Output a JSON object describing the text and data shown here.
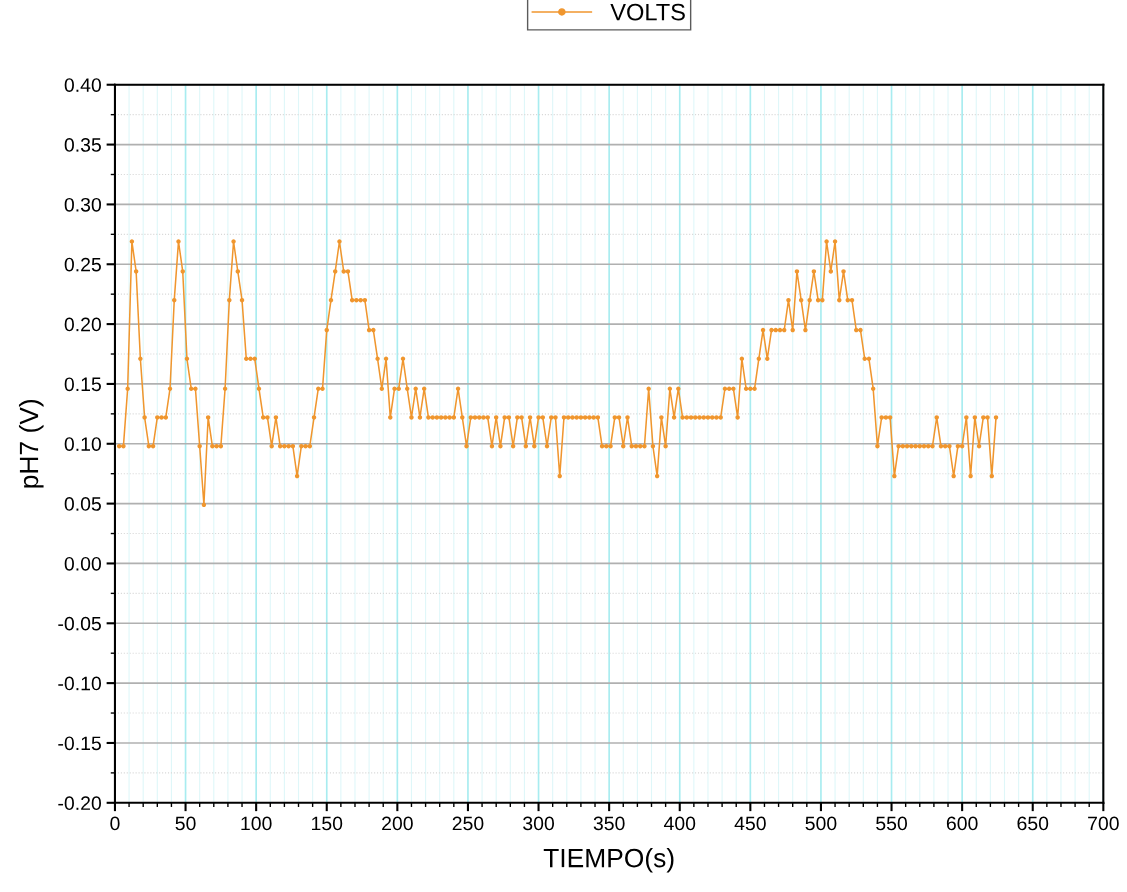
{
  "chart_data": {
    "type": "line",
    "xlabel": "TIEMPO(s)",
    "ylabel": "pH7 (V)",
    "xlim": [
      0,
      700
    ],
    "xticks": [
      0,
      50,
      100,
      150,
      200,
      250,
      300,
      350,
      400,
      450,
      500,
      550,
      600,
      650,
      700
    ],
    "ylim": [
      -0.2,
      0.4
    ],
    "yticks": [
      {
        "value": -0.2,
        "label": "-0.20"
      },
      {
        "value": -0.15,
        "label": "-0.15"
      },
      {
        "value": -0.1,
        "label": "-0.10"
      },
      {
        "value": -0.05,
        "label": "-0.05"
      },
      {
        "value": 0,
        "label": "0.00"
      },
      {
        "value": 0.05,
        "label": "0.05"
      },
      {
        "value": 0.1,
        "label": "0.10"
      },
      {
        "value": 0.15,
        "label": "0.15"
      },
      {
        "value": 0.2,
        "label": "0.20"
      },
      {
        "value": 0.25,
        "label": "0.25"
      },
      {
        "value": 0.3,
        "label": "0.30"
      },
      {
        "value": 0.35,
        "label": "0.35"
      },
      {
        "value": 0.4,
        "label": "0.40"
      }
    ],
    "grid": true,
    "legend": "top",
    "marker": "circle",
    "line_style": "solid",
    "series": [
      {
        "name": "VOLTS",
        "color": "#f0962e",
        "x": [
          3,
          6,
          9,
          12,
          15,
          18,
          21,
          24,
          27,
          30,
          33,
          36,
          39,
          42,
          45,
          48,
          51,
          54,
          57,
          60,
          63,
          66,
          69,
          72,
          75,
          78,
          81,
          84,
          87,
          90,
          93,
          96,
          99,
          102,
          105,
          108,
          111,
          114,
          117,
          120,
          123,
          126,
          129,
          132,
          135,
          138,
          141,
          144,
          147,
          150,
          153,
          156,
          159,
          162,
          165,
          168,
          171,
          174,
          177,
          180,
          183,
          186,
          189,
          192,
          195,
          198,
          201,
          204,
          207,
          210,
          213,
          216,
          219,
          222,
          225,
          228,
          231,
          234,
          237,
          240,
          243,
          246,
          249,
          252,
          255,
          258,
          261,
          264,
          267,
          270,
          273,
          276,
          279,
          282,
          285,
          288,
          291,
          294,
          297,
          300,
          303,
          306,
          309,
          312,
          315,
          318,
          321,
          324,
          327,
          330,
          333,
          336,
          339,
          342,
          345,
          348,
          351,
          354,
          357,
          360,
          363,
          366,
          369,
          372,
          375,
          378,
          381,
          384,
          387,
          390,
          393,
          396,
          399,
          402,
          405,
          408,
          411,
          414,
          417,
          420,
          423,
          426,
          429,
          432,
          435,
          438,
          441,
          444,
          447,
          450,
          453,
          456,
          459,
          462,
          465,
          468,
          471,
          474,
          477,
          480,
          483,
          486,
          489,
          492,
          495,
          498,
          501,
          504,
          507,
          510,
          513,
          516,
          519,
          522,
          525,
          528,
          531,
          534,
          537,
          540,
          543,
          546,
          549,
          552,
          555,
          558,
          561,
          564,
          567,
          570,
          573,
          576,
          579,
          582,
          585,
          588,
          591,
          594,
          597,
          600,
          603,
          606,
          609,
          612,
          615,
          618,
          621,
          624
        ],
        "values": [
          0.098,
          0.098,
          0.146,
          0.269,
          0.244,
          0.171,
          0.122,
          0.098,
          0.098,
          0.122,
          0.122,
          0.122,
          0.146,
          0.22,
          0.269,
          0.244,
          0.171,
          0.146,
          0.146,
          0.098,
          0.049,
          0.122,
          0.098,
          0.098,
          0.098,
          0.146,
          0.22,
          0.269,
          0.244,
          0.22,
          0.171,
          0.171,
          0.171,
          0.146,
          0.122,
          0.122,
          0.098,
          0.122,
          0.098,
          0.098,
          0.098,
          0.098,
          0.073,
          0.098,
          0.098,
          0.098,
          0.122,
          0.146,
          0.146,
          0.195,
          0.22,
          0.244,
          0.269,
          0.244,
          0.244,
          0.22,
          0.22,
          0.22,
          0.22,
          0.195,
          0.195,
          0.171,
          0.146,
          0.171,
          0.122,
          0.146,
          0.146,
          0.171,
          0.146,
          0.122,
          0.146,
          0.122,
          0.146,
          0.122,
          0.122,
          0.122,
          0.122,
          0.122,
          0.122,
          0.122,
          0.146,
          0.122,
          0.098,
          0.122,
          0.122,
          0.122,
          0.122,
          0.122,
          0.098,
          0.122,
          0.098,
          0.122,
          0.122,
          0.098,
          0.122,
          0.122,
          0.098,
          0.122,
          0.098,
          0.122,
          0.122,
          0.098,
          0.122,
          0.122,
          0.073,
          0.122,
          0.122,
          0.122,
          0.122,
          0.122,
          0.122,
          0.122,
          0.122,
          0.122,
          0.098,
          0.098,
          0.098,
          0.122,
          0.122,
          0.098,
          0.122,
          0.098,
          0.098,
          0.098,
          0.098,
          0.146,
          0.098,
          0.073,
          0.122,
          0.098,
          0.146,
          0.122,
          0.146,
          0.122,
          0.122,
          0.122,
          0.122,
          0.122,
          0.122,
          0.122,
          0.122,
          0.122,
          0.122,
          0.146,
          0.146,
          0.146,
          0.122,
          0.171,
          0.146,
          0.146,
          0.146,
          0.171,
          0.195,
          0.171,
          0.195,
          0.195,
          0.195,
          0.195,
          0.22,
          0.195,
          0.244,
          0.22,
          0.195,
          0.22,
          0.244,
          0.22,
          0.22,
          0.269,
          0.244,
          0.269,
          0.22,
          0.244,
          0.22,
          0.22,
          0.195,
          0.195,
          0.171,
          0.171,
          0.146,
          0.098,
          0.122,
          0.122,
          0.122,
          0.073,
          0.098,
          0.098,
          0.098,
          0.098,
          0.098,
          0.098,
          0.098,
          0.098,
          0.098,
          0.122,
          0.098,
          0.098,
          0.098,
          0.073,
          0.098,
          0.098,
          0.122,
          0.073,
          0.122,
          0.098,
          0.122,
          0.122,
          0.073,
          0.122
        ]
      }
    ]
  }
}
